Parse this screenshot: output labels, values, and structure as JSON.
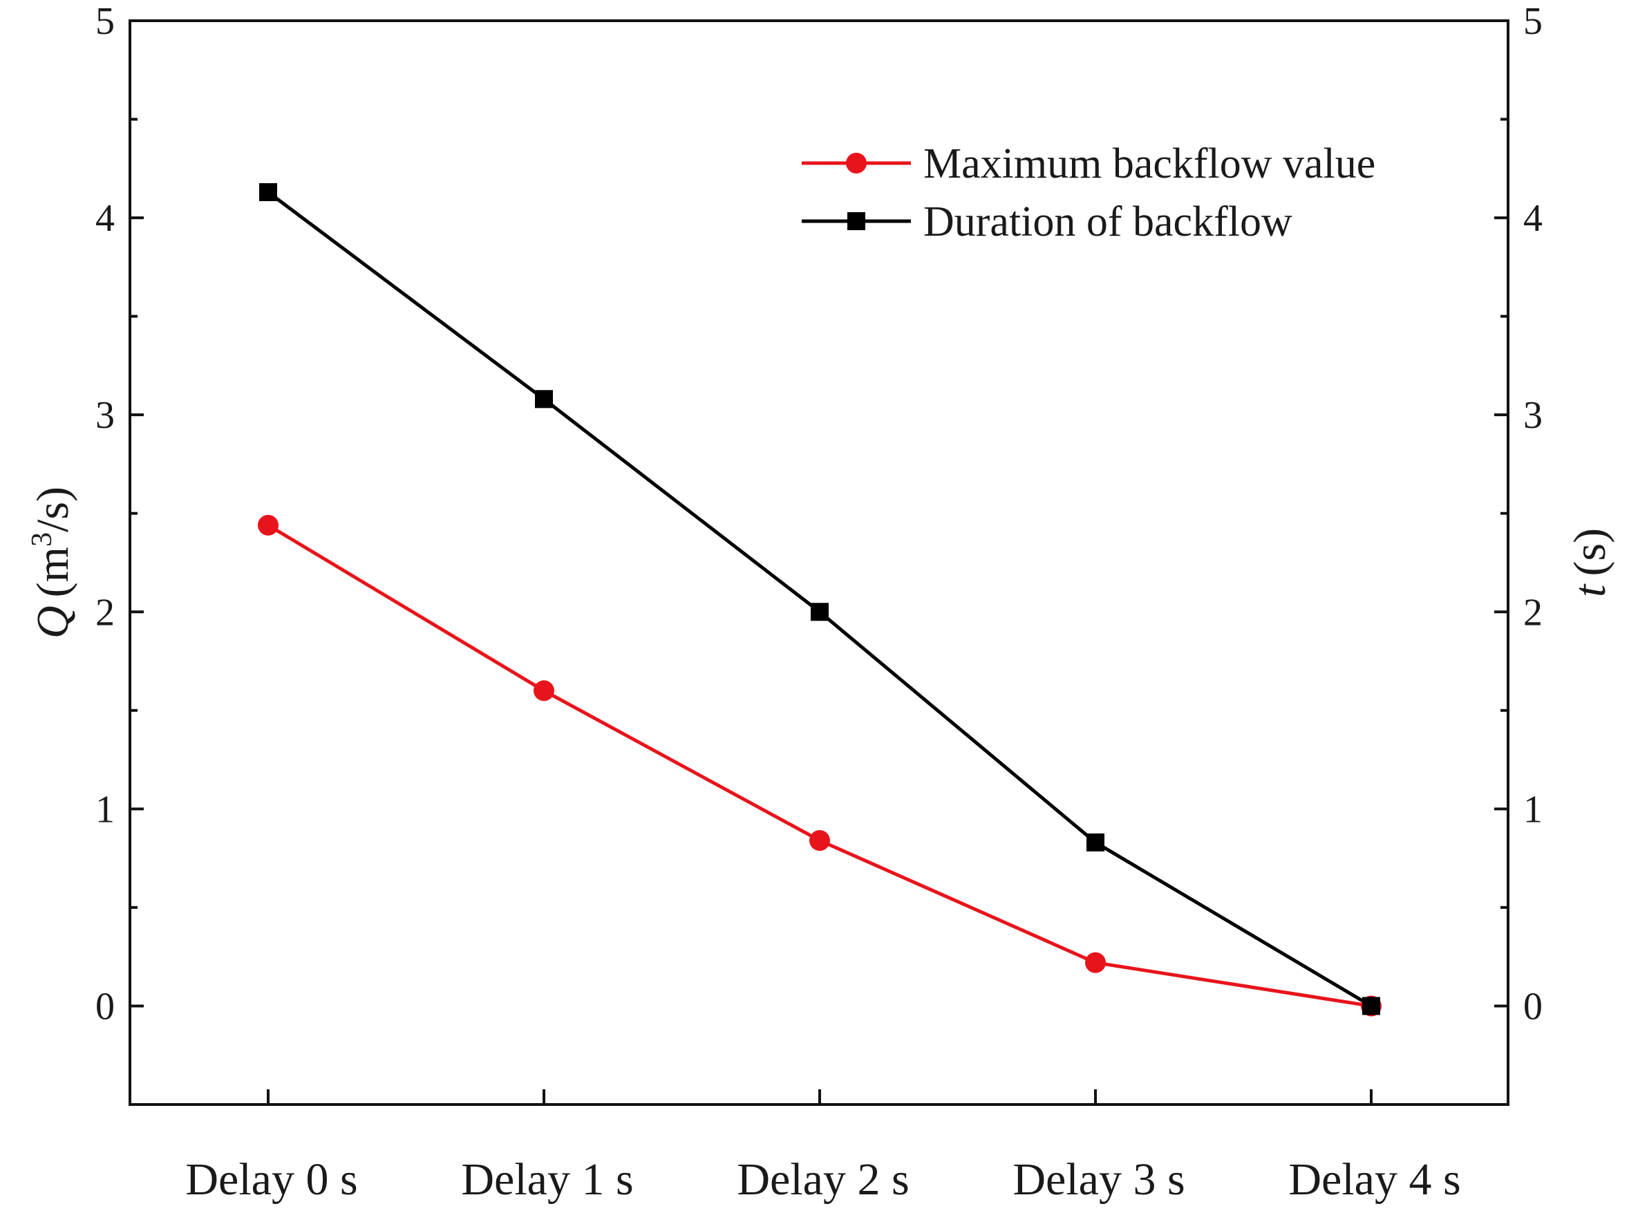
{
  "chart_data": {
    "type": "line",
    "categories": [
      "Delay 0 s",
      "Delay 1 s",
      "Delay 2 s",
      "Delay 3 s",
      "Delay 4 s"
    ],
    "series": [
      {
        "name": "Maximum backflow value",
        "axis": "left",
        "color": "#e8141b",
        "marker": "circle",
        "values": [
          2.44,
          1.6,
          0.84,
          0.22,
          0.0
        ]
      },
      {
        "name": "Duration of backflow",
        "axis": "right",
        "color": "#000000",
        "marker": "square",
        "values": [
          4.13,
          3.08,
          2.0,
          0.83,
          0.0
        ]
      }
    ],
    "y_left": {
      "label_symbol": "Q",
      "label_unit": "(m³/s)",
      "label_unit_base": "(m",
      "label_unit_sup": "3",
      "label_unit_tail": "/s)",
      "ylim": [
        -0.5,
        5
      ],
      "ticks": [
        0,
        1,
        2,
        3,
        4,
        5
      ],
      "tick_labels": [
        "0",
        "1",
        "2",
        "3",
        "4",
        "5"
      ]
    },
    "y_right": {
      "label_symbol": "t",
      "label_unit": "(s)",
      "ylim": [
        -0.5,
        5
      ],
      "ticks": [
        0,
        1,
        2,
        3,
        4,
        5
      ],
      "tick_labels": [
        "0",
        "1",
        "2",
        "3",
        "4",
        "5"
      ]
    },
    "xlabel": "",
    "title": "",
    "legend": {
      "position": "top-right",
      "entries": [
        "Maximum backflow value",
        "Duration of backflow"
      ]
    },
    "grid": false
  }
}
